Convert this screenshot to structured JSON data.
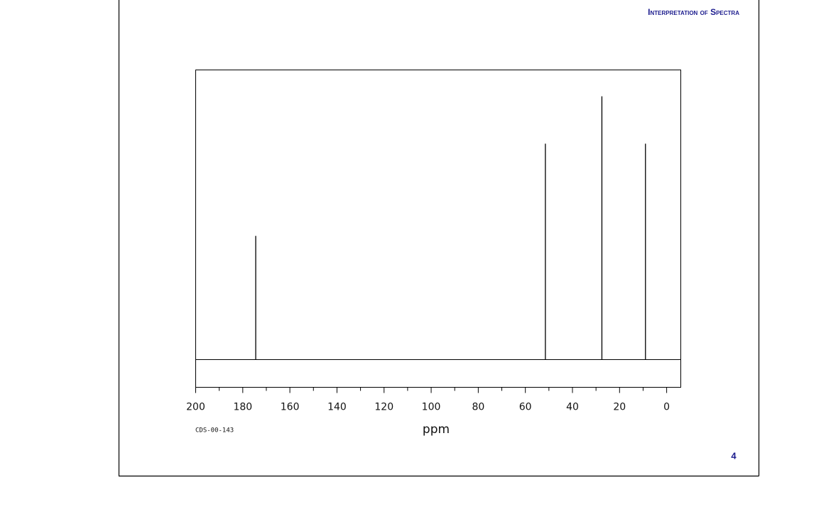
{
  "header": {
    "title": "Interpretation of Spectra"
  },
  "page_number": "4",
  "chart_data": {
    "type": "spectrum",
    "x": [
      174.5,
      51.5,
      27.5,
      9.0
    ],
    "values": [
      47,
      82,
      100,
      82
    ],
    "color": "#000000",
    "xlim": [
      200,
      -6
    ],
    "ylim": [
      -10.5,
      110
    ],
    "xticks": [
      200,
      180,
      160,
      140,
      120,
      100,
      80,
      60,
      40,
      20,
      0
    ],
    "xminorticks": [
      190,
      170,
      150,
      130,
      110,
      90,
      70,
      50,
      30,
      10
    ],
    "xlabel": "ppm",
    "annotation": "CDS-00-143"
  }
}
